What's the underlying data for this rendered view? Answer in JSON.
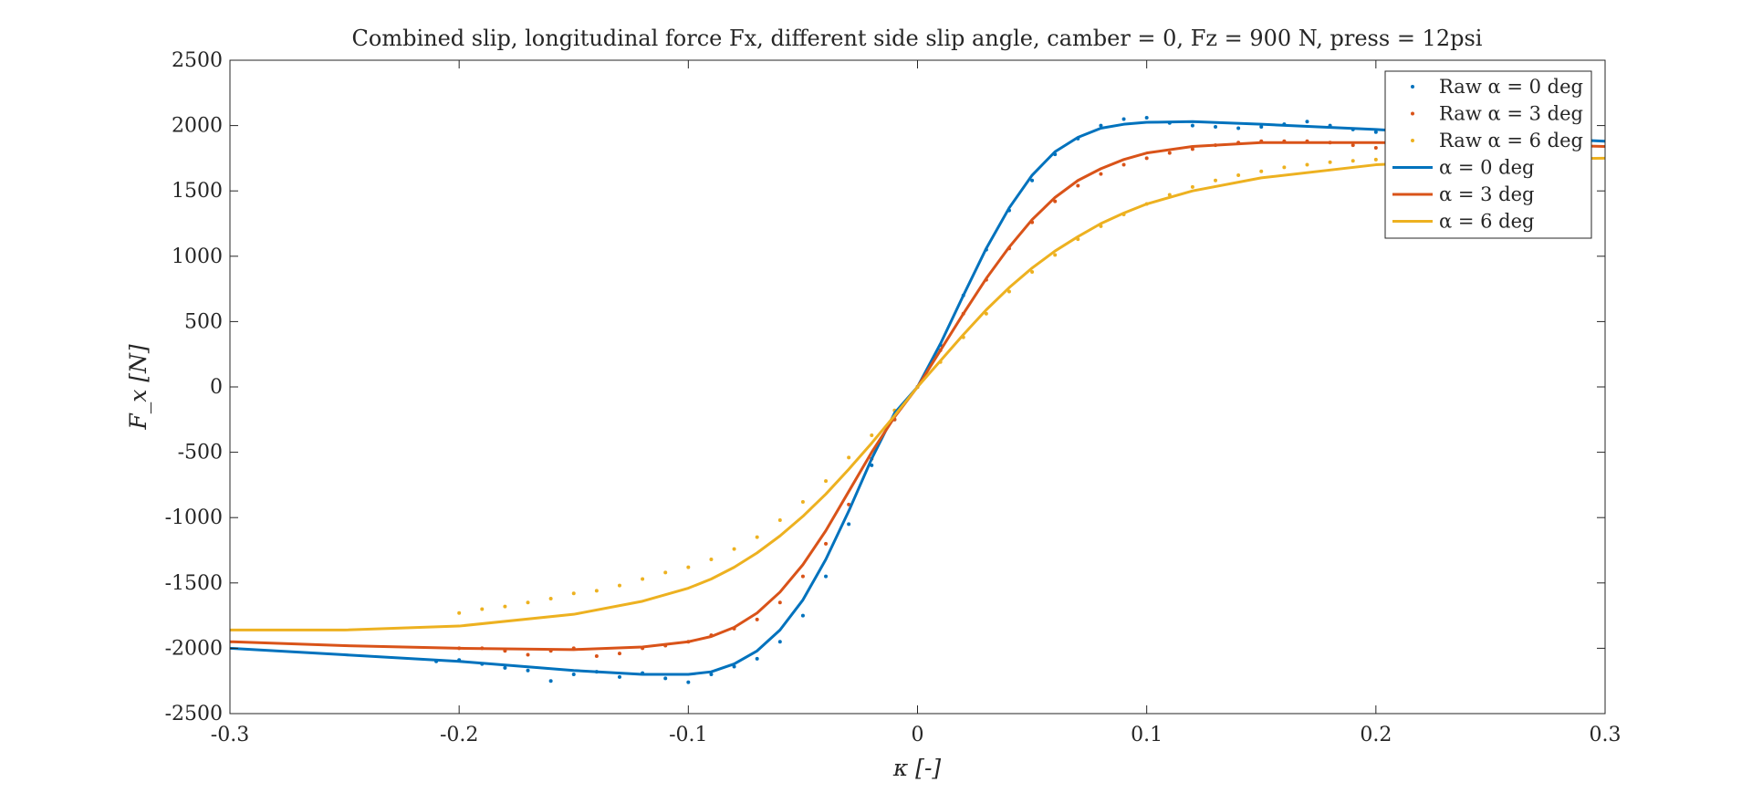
{
  "chart_data": {
    "type": "line",
    "title": "Combined slip, longitudinal force Fx, different side slip angle, camber = 0, Fz = 900 N, press = 12psi",
    "xlabel": "κ [-]",
    "ylabel": "F_x [N]",
    "xlim": [
      -0.3,
      0.3
    ],
    "ylim": [
      -2500,
      2500
    ],
    "xticks": [
      "-0.3",
      "-0.2",
      "-0.1",
      "0",
      "0.1",
      "0.2",
      "0.3"
    ],
    "yticks": [
      "2500",
      "2000",
      "1500",
      "1000",
      "500",
      "0",
      "-500",
      "-1000",
      "-1500",
      "-2000",
      "-2500"
    ],
    "grid": false,
    "legend_position": "top-right",
    "colors": {
      "alpha0": "#0072BD",
      "alpha3": "#D95319",
      "alpha6": "#EDB120",
      "axes": "#262626"
    },
    "series": [
      {
        "name": "Raw α = 0 deg",
        "style": "dots",
        "color": "#0072BD",
        "x": [
          -0.21,
          -0.2,
          -0.19,
          -0.18,
          -0.17,
          -0.16,
          -0.15,
          -0.14,
          -0.13,
          -0.12,
          -0.11,
          -0.1,
          -0.09,
          -0.08,
          -0.07,
          -0.06,
          -0.05,
          -0.04,
          -0.03,
          -0.02,
          -0.01,
          0.0,
          0.01,
          0.02,
          0.03,
          0.04,
          0.05,
          0.06,
          0.07,
          0.08,
          0.09,
          0.1,
          0.11,
          0.12,
          0.13,
          0.14,
          0.15,
          0.16,
          0.17,
          0.18,
          0.19,
          0.2
        ],
        "values": [
          -2100,
          -2090,
          -2120,
          -2150,
          -2170,
          -2250,
          -2200,
          -2180,
          -2220,
          -2190,
          -2230,
          -2260,
          -2200,
          -2140,
          -2080,
          -1950,
          -1750,
          -1450,
          -1050,
          -600,
          -250,
          0,
          320,
          700,
          1050,
          1350,
          1580,
          1780,
          1900,
          2000,
          2050,
          2060,
          2020,
          2000,
          1990,
          1980,
          1990,
          2010,
          2030,
          2000,
          1970,
          1950
        ]
      },
      {
        "name": "Raw α = 3 deg",
        "style": "dots",
        "color": "#D95319",
        "x": [
          -0.2,
          -0.19,
          -0.18,
          -0.17,
          -0.16,
          -0.15,
          -0.14,
          -0.13,
          -0.12,
          -0.11,
          -0.1,
          -0.09,
          -0.08,
          -0.07,
          -0.06,
          -0.05,
          -0.04,
          -0.03,
          -0.02,
          -0.01,
          0.0,
          0.01,
          0.02,
          0.03,
          0.04,
          0.05,
          0.06,
          0.07,
          0.08,
          0.09,
          0.1,
          0.11,
          0.12,
          0.13,
          0.14,
          0.15,
          0.16,
          0.17,
          0.18,
          0.19,
          0.2
        ],
        "values": [
          -2000,
          -2000,
          -2020,
          -2050,
          -2020,
          -2000,
          -2060,
          -2040,
          -2000,
          -1980,
          -1950,
          -1900,
          -1850,
          -1780,
          -1650,
          -1450,
          -1200,
          -900,
          -550,
          -250,
          0,
          280,
          560,
          820,
          1060,
          1260,
          1420,
          1540,
          1630,
          1700,
          1750,
          1790,
          1820,
          1850,
          1870,
          1880,
          1880,
          1880,
          1870,
          1850,
          1830
        ]
      },
      {
        "name": "Raw α = 6 deg",
        "style": "dots",
        "color": "#EDB120",
        "x": [
          -0.2,
          -0.19,
          -0.18,
          -0.17,
          -0.16,
          -0.15,
          -0.14,
          -0.13,
          -0.12,
          -0.11,
          -0.1,
          -0.09,
          -0.08,
          -0.07,
          -0.06,
          -0.05,
          -0.04,
          -0.03,
          -0.02,
          -0.01,
          0.0,
          0.01,
          0.02,
          0.03,
          0.04,
          0.05,
          0.06,
          0.07,
          0.08,
          0.09,
          0.1,
          0.11,
          0.12,
          0.13,
          0.14,
          0.15,
          0.16,
          0.17,
          0.18,
          0.19,
          0.2
        ],
        "values": [
          -1730,
          -1700,
          -1680,
          -1650,
          -1620,
          -1580,
          -1560,
          -1520,
          -1470,
          -1420,
          -1380,
          -1320,
          -1240,
          -1150,
          -1020,
          -880,
          -720,
          -540,
          -370,
          -180,
          0,
          190,
          380,
          560,
          730,
          880,
          1010,
          1130,
          1230,
          1320,
          1400,
          1470,
          1530,
          1580,
          1620,
          1650,
          1680,
          1700,
          1720,
          1730,
          1740
        ]
      },
      {
        "name": "α = 0 deg",
        "style": "line",
        "color": "#0072BD",
        "x": [
          -0.3,
          -0.25,
          -0.2,
          -0.15,
          -0.12,
          -0.1,
          -0.09,
          -0.08,
          -0.07,
          -0.06,
          -0.05,
          -0.04,
          -0.03,
          -0.02,
          -0.01,
          0.0,
          0.01,
          0.02,
          0.03,
          0.04,
          0.05,
          0.06,
          0.07,
          0.08,
          0.09,
          0.1,
          0.12,
          0.15,
          0.2,
          0.25,
          0.3
        ],
        "values": [
          -2000,
          -2050,
          -2100,
          -2170,
          -2200,
          -2200,
          -2180,
          -2120,
          -2020,
          -1860,
          -1630,
          -1320,
          -950,
          -550,
          -200,
          0,
          330,
          700,
          1060,
          1370,
          1620,
          1800,
          1910,
          1980,
          2010,
          2025,
          2030,
          2010,
          1970,
          1920,
          1880
        ]
      },
      {
        "name": "α = 3 deg",
        "style": "line",
        "color": "#D95319",
        "x": [
          -0.3,
          -0.25,
          -0.2,
          -0.15,
          -0.12,
          -0.1,
          -0.09,
          -0.08,
          -0.07,
          -0.06,
          -0.05,
          -0.04,
          -0.03,
          -0.02,
          -0.01,
          0.0,
          0.01,
          0.02,
          0.03,
          0.04,
          0.05,
          0.06,
          0.07,
          0.08,
          0.09,
          0.1,
          0.12,
          0.15,
          0.2,
          0.25,
          0.3
        ],
        "values": [
          -1950,
          -1980,
          -2000,
          -2010,
          -1990,
          -1950,
          -1910,
          -1840,
          -1730,
          -1570,
          -1360,
          -1100,
          -800,
          -500,
          -230,
          0,
          280,
          560,
          830,
          1070,
          1280,
          1450,
          1580,
          1670,
          1740,
          1790,
          1840,
          1870,
          1870,
          1860,
          1840
        ]
      },
      {
        "name": "α = 6 deg",
        "style": "line",
        "color": "#EDB120",
        "x": [
          -0.3,
          -0.25,
          -0.2,
          -0.15,
          -0.12,
          -0.1,
          -0.09,
          -0.08,
          -0.07,
          -0.06,
          -0.05,
          -0.04,
          -0.03,
          -0.02,
          -0.01,
          0.0,
          0.01,
          0.02,
          0.03,
          0.04,
          0.05,
          0.06,
          0.07,
          0.08,
          0.09,
          0.1,
          0.12,
          0.15,
          0.2,
          0.25,
          0.3
        ],
        "values": [
          -1860,
          -1860,
          -1830,
          -1740,
          -1640,
          -1540,
          -1470,
          -1380,
          -1270,
          -1140,
          -990,
          -820,
          -630,
          -430,
          -220,
          0,
          200,
          400,
          590,
          760,
          910,
          1040,
          1150,
          1250,
          1330,
          1400,
          1500,
          1600,
          1700,
          1740,
          1750
        ]
      }
    ]
  }
}
